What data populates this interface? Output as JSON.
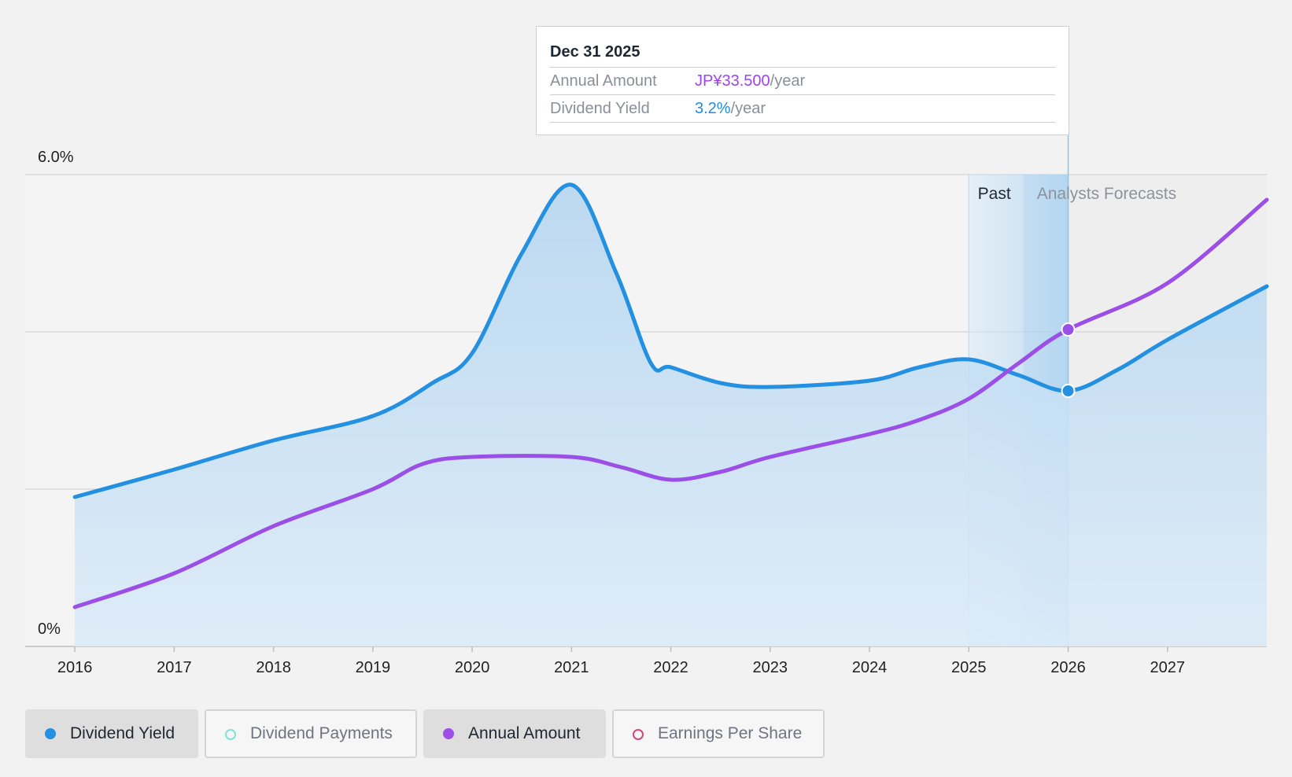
{
  "tooltip": {
    "date": "Dec 31 2025",
    "rows": [
      {
        "label": "Annual Amount",
        "value": "JP¥33.500",
        "unit": "/year"
      },
      {
        "label": "Dividend Yield",
        "value": "3.2%",
        "unit": "/year"
      }
    ]
  },
  "regions": {
    "past": "Past",
    "forecast": "Analysts Forecasts"
  },
  "legend": [
    {
      "label": "Dividend Yield",
      "color": "#2490e2",
      "active": true
    },
    {
      "label": "Dividend Payments",
      "color": "#7fe3d8",
      "active": false
    },
    {
      "label": "Annual Amount",
      "color": "#9b4fe6",
      "active": true
    },
    {
      "label": "Earnings Per Share",
      "color": "#d0487f",
      "active": false
    }
  ],
  "chart_data": {
    "type": "line",
    "x_ticks": [
      "2016",
      "2017",
      "2018",
      "2019",
      "2020",
      "2021",
      "2022",
      "2023",
      "2024",
      "2025",
      "2026",
      "2027"
    ],
    "y_axis_labels": [
      "6.0%",
      "0%"
    ],
    "ylim": [
      0,
      6
    ],
    "gridlines": [
      0,
      2,
      4,
      6
    ],
    "xlim": [
      2015.5,
      2028.0
    ],
    "highlight_point": 2026.0,
    "past_region_start": 2025.0,
    "forecast_region_start": 2025.55,
    "series": [
      {
        "name": "Dividend Yield",
        "color": "#2490e2",
        "fill": true,
        "points": [
          [
            2016.0,
            1.9
          ],
          [
            2017.0,
            2.25
          ],
          [
            2018.0,
            2.62
          ],
          [
            2019.0,
            2.93
          ],
          [
            2019.6,
            3.35
          ],
          [
            2020.0,
            3.73
          ],
          [
            2020.5,
            5.0
          ],
          [
            2021.0,
            5.87
          ],
          [
            2021.45,
            4.75
          ],
          [
            2021.8,
            3.6
          ],
          [
            2022.0,
            3.55
          ],
          [
            2022.5,
            3.35
          ],
          [
            2023.0,
            3.3
          ],
          [
            2024.0,
            3.38
          ],
          [
            2024.5,
            3.55
          ],
          [
            2025.0,
            3.65
          ],
          [
            2025.5,
            3.45
          ],
          [
            2026.0,
            3.25
          ],
          [
            2026.5,
            3.52
          ],
          [
            2027.0,
            3.9
          ],
          [
            2028.0,
            4.58
          ]
        ]
      },
      {
        "name": "Annual Amount",
        "color": "#9b4fe6",
        "fill": false,
        "points": [
          [
            2016.0,
            0.5
          ],
          [
            2017.0,
            0.93
          ],
          [
            2018.0,
            1.53
          ],
          [
            2019.0,
            2.0
          ],
          [
            2019.5,
            2.32
          ],
          [
            2020.0,
            2.41
          ],
          [
            2021.0,
            2.41
          ],
          [
            2021.5,
            2.28
          ],
          [
            2022.0,
            2.12
          ],
          [
            2022.5,
            2.22
          ],
          [
            2023.0,
            2.41
          ],
          [
            2024.0,
            2.7
          ],
          [
            2024.5,
            2.88
          ],
          [
            2025.0,
            3.15
          ],
          [
            2025.5,
            3.6
          ],
          [
            2026.0,
            4.03
          ],
          [
            2027.0,
            4.62
          ],
          [
            2028.0,
            5.68
          ]
        ]
      }
    ]
  }
}
